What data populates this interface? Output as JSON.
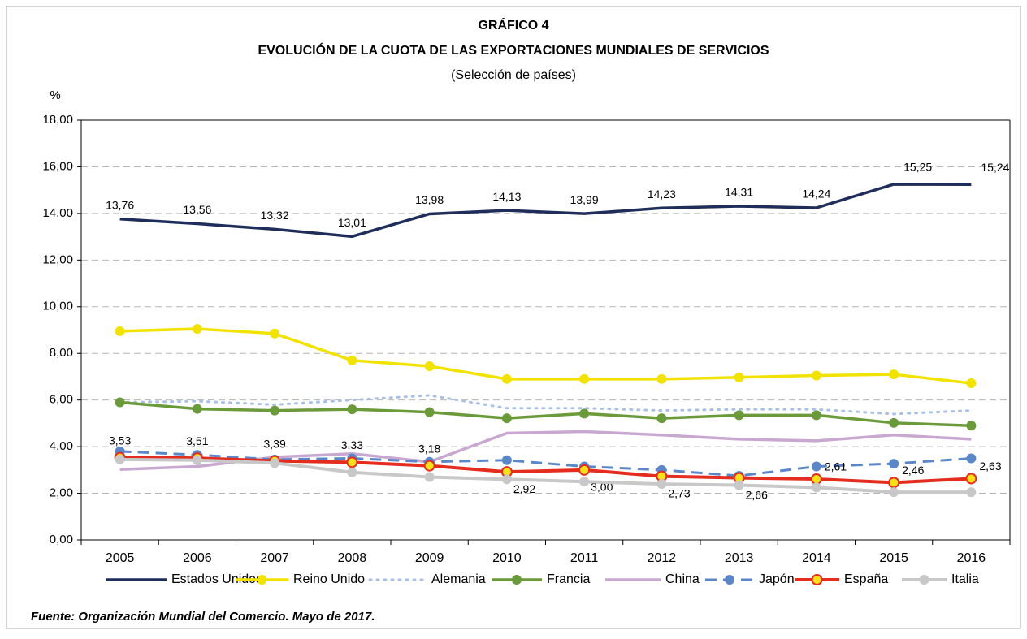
{
  "chart_data": {
    "type": "line",
    "title": "GRÁFICO 4",
    "subtitle": "EVOLUCIÓN DE LA CUOTA DE LAS EXPORTACIONES MUNDIALES DE SERVICIOS",
    "subtitle2": "(Selección de países)",
    "y_unit": "%",
    "source": "Fuente: Organización Mundial del Comercio. Mayo de 2017.",
    "categories": [
      "2005",
      "2006",
      "2007",
      "2008",
      "2009",
      "2010",
      "2011",
      "2012",
      "2013",
      "2014",
      "2015",
      "2016"
    ],
    "ylim": [
      0,
      18
    ],
    "yticks": [
      {
        "value": 0,
        "label": "0,00"
      },
      {
        "value": 2,
        "label": "2,00"
      },
      {
        "value": 4,
        "label": "4,00"
      },
      {
        "value": 6,
        "label": "6,00"
      },
      {
        "value": 8,
        "label": "8,00"
      },
      {
        "value": 10,
        "label": "10,00"
      },
      {
        "value": 12,
        "label": "12,00"
      },
      {
        "value": 14,
        "label": "14,00"
      },
      {
        "value": 16,
        "label": "16,00"
      },
      {
        "value": 18,
        "label": "18,00"
      }
    ],
    "grid": true,
    "legend": "bottom",
    "series": [
      {
        "name": "Estados Unidos",
        "color": "#1f2d5a",
        "style": "solid",
        "values": [
          13.76,
          13.56,
          13.32,
          13.01,
          13.98,
          14.13,
          13.99,
          14.23,
          14.31,
          14.24,
          15.25,
          15.24
        ],
        "value_labels": [
          "13,76",
          "13,56",
          "13,32",
          "13,01",
          "13,98",
          "14,13",
          "13,99",
          "14,23",
          "14,31",
          "14,24",
          "15,25",
          "15,24"
        ]
      },
      {
        "name": "Reino Unido",
        "color": "#f2e200",
        "style": "solid",
        "marker": true,
        "values": [
          8.95,
          9.05,
          8.85,
          7.7,
          7.45,
          6.9,
          6.9,
          6.9,
          6.97,
          7.05,
          7.1,
          6.72
        ]
      },
      {
        "name": "Alemania",
        "color": "#a9c0e6",
        "style": "dotted",
        "values": [
          5.9,
          5.95,
          5.8,
          6.0,
          6.2,
          5.65,
          5.65,
          5.55,
          5.6,
          5.6,
          5.4,
          5.55
        ]
      },
      {
        "name": "Francia",
        "color": "#6b9a3b",
        "style": "solid",
        "marker": true,
        "values": [
          5.9,
          5.62,
          5.55,
          5.6,
          5.48,
          5.22,
          5.42,
          5.22,
          5.35,
          5.35,
          5.02,
          4.9
        ]
      },
      {
        "name": "China",
        "color": "#c8a8d0",
        "style": "solid",
        "values": [
          3.02,
          3.15,
          3.55,
          3.7,
          3.35,
          4.58,
          4.65,
          4.5,
          4.32,
          4.25,
          4.5,
          4.32
        ]
      },
      {
        "name": "Japón",
        "color": "#5b87c8",
        "style": "dashed",
        "marker": true,
        "values": [
          3.8,
          3.65,
          3.45,
          3.5,
          3.35,
          3.42,
          3.15,
          3.0,
          2.75,
          3.15,
          3.27,
          3.5
        ]
      },
      {
        "name": "España",
        "color": "#e42d1f",
        "style": "solid",
        "marker": true,
        "marker_fill": "#f7e017",
        "values": [
          3.53,
          3.51,
          3.39,
          3.33,
          3.18,
          2.92,
          3.0,
          2.73,
          2.66,
          2.61,
          2.46,
          2.63
        ],
        "value_labels": [
          "3,53",
          "3,51",
          "3,39",
          "3,33",
          "3,18",
          "2,92",
          "3,00",
          "2,73",
          "2,66",
          "2,61",
          "2,46",
          "2,63"
        ]
      },
      {
        "name": "Italia",
        "color": "#c8c8c8",
        "style": "solid",
        "marker": true,
        "values": [
          3.45,
          3.42,
          3.3,
          2.9,
          2.7,
          2.6,
          2.5,
          2.4,
          2.35,
          2.25,
          2.05,
          2.05
        ]
      }
    ]
  }
}
